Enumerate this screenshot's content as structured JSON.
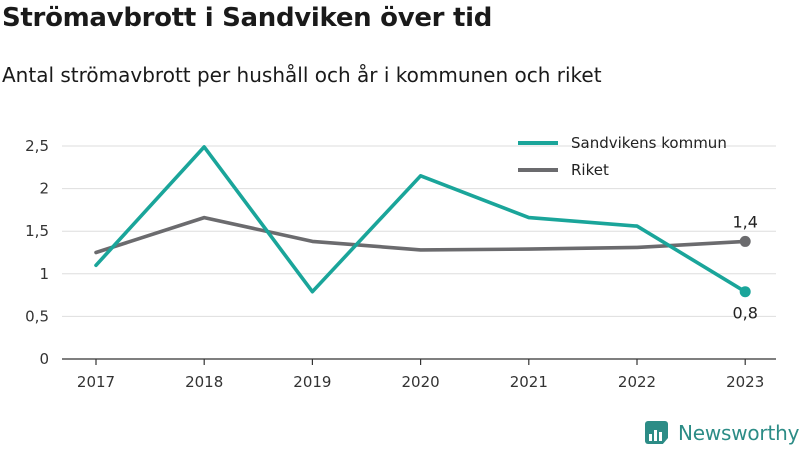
{
  "title": "Strömavbrott i Sandviken över tid",
  "subtitle": "Antal strömavbrott per hushåll och år i kommunen och riket",
  "brand": {
    "name": "Newsworthy",
    "logo_icon": "newsworthy-logo-icon"
  },
  "chart_data": {
    "type": "line",
    "x": [
      "2017",
      "2018",
      "2019",
      "2020",
      "2021",
      "2022",
      "2023"
    ],
    "series": [
      {
        "name": "Sandvikens kommun",
        "color": "#1aa59a",
        "values": [
          1.1,
          2.49,
          0.79,
          2.15,
          1.66,
          1.56,
          0.79
        ]
      },
      {
        "name": "Riket",
        "color": "#6b6b6e",
        "values": [
          1.25,
          1.66,
          1.38,
          1.28,
          1.29,
          1.31,
          1.38
        ]
      }
    ],
    "yticks": [
      "0",
      "0,5",
      "1",
      "1,5",
      "2",
      "2,5"
    ],
    "ylim": [
      0,
      2.5
    ],
    "grid": true,
    "legend": "top-right",
    "end_labels": {
      "Sandvikens kommun": "0,8",
      "Riket": "1,4"
    }
  }
}
